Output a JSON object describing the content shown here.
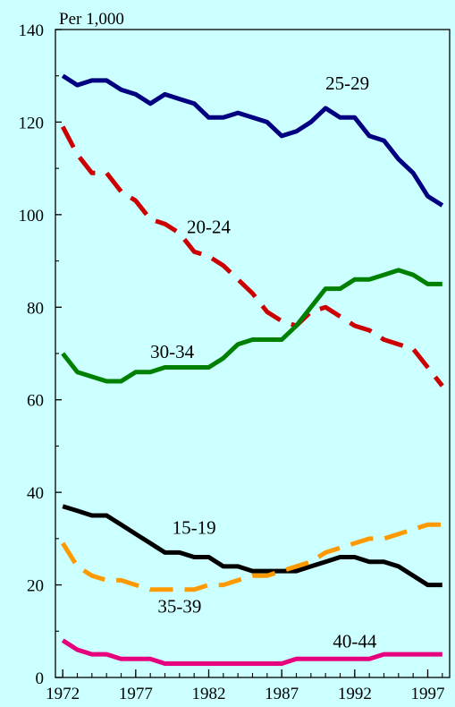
{
  "chart_data": {
    "type": "line",
    "unit_label": "Per 1,000",
    "x_ticks": [
      1972,
      1977,
      1982,
      1987,
      1992,
      1997
    ],
    "y_ticks": [
      0,
      20,
      40,
      60,
      80,
      100,
      120,
      140
    ],
    "xlim": [
      1971.5,
      1998.5
    ],
    "ylim": [
      0,
      140
    ],
    "grid": false,
    "x": [
      1972,
      1973,
      1974,
      1975,
      1976,
      1977,
      1978,
      1979,
      1980,
      1981,
      1982,
      1983,
      1984,
      1985,
      1986,
      1987,
      1988,
      1989,
      1990,
      1991,
      1992,
      1993,
      1994,
      1995,
      1996,
      1997,
      1998
    ],
    "series": [
      {
        "name": "25-29",
        "color": "#000080",
        "style": "solid",
        "values": [
          130,
          128,
          129,
          129,
          127,
          126,
          124,
          126,
          125,
          124,
          121,
          121,
          122,
          121,
          120,
          117,
          118,
          120,
          123,
          121,
          121,
          117,
          116,
          112,
          109,
          104,
          102
        ]
      },
      {
        "name": "20-24",
        "color": "#cc0000",
        "style": "dashed",
        "values": [
          119,
          113,
          109,
          109,
          105,
          103,
          99,
          98,
          96,
          92,
          91,
          89,
          86,
          83,
          79,
          77,
          76,
          79,
          80,
          78,
          76,
          75,
          73,
          72,
          71,
          67,
          63
        ]
      },
      {
        "name": "30-34",
        "color": "#008000",
        "style": "solid",
        "values": [
          70,
          66,
          65,
          64,
          64,
          66,
          66,
          67,
          67,
          67,
          67,
          69,
          72,
          73,
          73,
          73,
          76,
          80,
          84,
          84,
          86,
          86,
          87,
          88,
          87,
          85,
          85
        ]
      },
      {
        "name": "15-19",
        "color": "#000000",
        "style": "solid",
        "values": [
          37,
          36,
          35,
          35,
          33,
          31,
          29,
          27,
          27,
          26,
          26,
          24,
          24,
          23,
          23,
          23,
          23,
          24,
          25,
          26,
          26,
          25,
          25,
          24,
          22,
          20,
          20
        ]
      },
      {
        "name": "35-39",
        "color": "#ff9900",
        "style": "dashed",
        "values": [
          29,
          24,
          22,
          21,
          21,
          20,
          19,
          19,
          19,
          19,
          20,
          20,
          21,
          22,
          22,
          23,
          24,
          25,
          27,
          28,
          29,
          30,
          30,
          31,
          32,
          33,
          33
        ]
      },
      {
        "name": "40-44",
        "color": "#e6007e",
        "style": "solid",
        "values": [
          8,
          6,
          5,
          5,
          4,
          4,
          4,
          3,
          3,
          3,
          3,
          3,
          3,
          3,
          3,
          3,
          4,
          4,
          4,
          4,
          4,
          4,
          5,
          5,
          5,
          5,
          5
        ]
      }
    ],
    "series_label_anchor": {
      "25-29": [
        1991.5,
        127
      ],
      "20-24": [
        1982,
        96
      ],
      "30-34": [
        1979.5,
        69
      ],
      "15-19": [
        1981,
        31
      ],
      "35-39": [
        1980,
        14
      ],
      "40-44": [
        1992,
        6.5
      ]
    }
  }
}
